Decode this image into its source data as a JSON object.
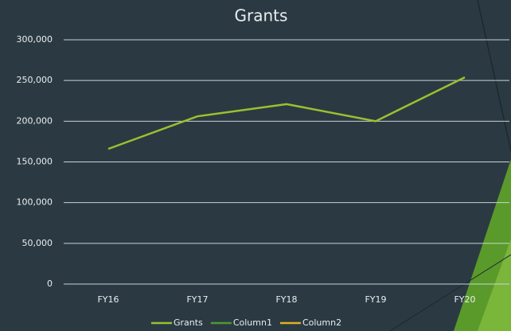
{
  "chart_data": {
    "type": "line",
    "title": "Grants",
    "categories": [
      "FY16",
      "FY17",
      "FY18",
      "FY19",
      "FY20"
    ],
    "series": [
      {
        "name": "Grants",
        "color": "#9bc02f",
        "values": [
          166000,
          206000,
          221000,
          200000,
          254000
        ]
      },
      {
        "name": "Column1",
        "color": "#4e9a2e",
        "values": [
          null,
          null,
          null,
          null,
          null
        ]
      },
      {
        "name": "Column2",
        "color": "#e0b020",
        "values": [
          null,
          null,
          null,
          null,
          null
        ]
      }
    ],
    "ylim": [
      0,
      300000
    ],
    "yticks": [
      0,
      {
        "value": 50000,
        "label": "50,000"
      },
      {
        "value": 100000,
        "label": "100,000"
      },
      {
        "value": 150000,
        "label": "150,000"
      },
      {
        "value": 200000,
        "label": "200,000"
      },
      {
        "value": 250000,
        "label": "250,000"
      },
      {
        "value": 300000,
        "label": "300,000"
      }
    ],
    "grid": true,
    "legend": "bottom"
  }
}
